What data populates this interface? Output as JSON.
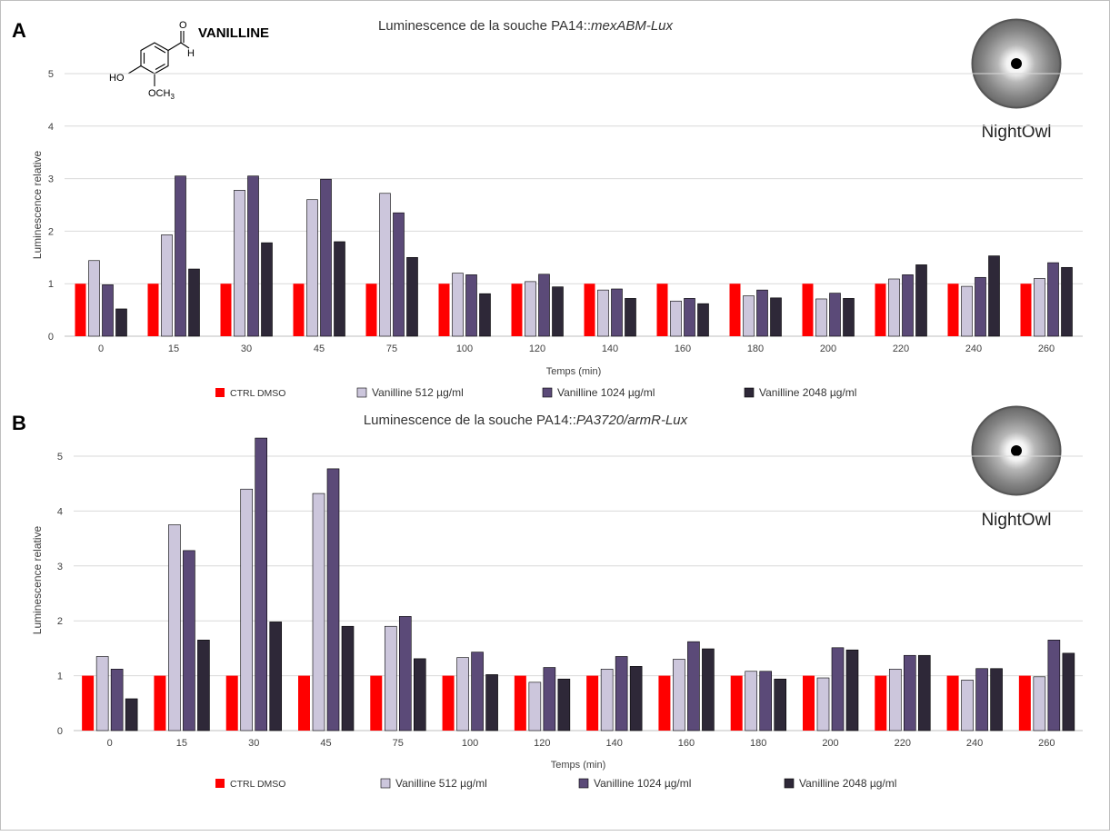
{
  "panel_letters": [
    "A",
    "B"
  ],
  "molecule": {
    "name": "VANILLINE",
    "atom_O": "O",
    "atom_H": "H",
    "atom_HO": "HO",
    "atom_OCH": "OCH",
    "atom_sub3": "3"
  },
  "imaging_label": "NightOwl",
  "colors": {
    "ctrl": "#ff0000",
    "v512": "#ccc6dc",
    "v1024": "#5b4a78",
    "v2048": "#2e2838",
    "grid": "#d9d9d9",
    "axis": "#bfbfbf",
    "text": "#404040"
  },
  "chart_data": [
    {
      "type": "bar",
      "panel": "A",
      "title_prefix": "Luminescence de la souche PA14::",
      "title_italic": "mexABM-Lux",
      "xlabel": "Temps (min)",
      "ylabel": "Luminescence relative",
      "ylim": [
        0,
        5
      ],
      "yticks": [
        "0",
        "1",
        "2",
        "3",
        "4",
        "5"
      ],
      "grid": true,
      "legend_position": "bottom",
      "categories": [
        "0",
        "15",
        "30",
        "45",
        "75",
        "100",
        "120",
        "140",
        "160",
        "180",
        "200",
        "220",
        "240",
        "260"
      ],
      "series": [
        {
          "name": "CTRL DMSO",
          "values": [
            1,
            1,
            1,
            1,
            1,
            1,
            1,
            1,
            1,
            1,
            1,
            1,
            1,
            1
          ]
        },
        {
          "name": "Vanilline 512 µg/ml",
          "values": [
            1.44,
            1.93,
            2.78,
            2.6,
            2.72,
            1.2,
            1.04,
            0.88,
            0.67,
            0.77,
            0.71,
            1.09,
            0.95,
            1.1
          ]
        },
        {
          "name": "Vanilline 1024 µg/ml",
          "values": [
            0.98,
            3.05,
            3.05,
            2.99,
            2.35,
            1.17,
            1.18,
            0.9,
            0.72,
            0.88,
            0.82,
            1.17,
            1.12,
            1.4
          ]
        },
        {
          "name": "Vanilline 2048 µg/ml",
          "values": [
            0.52,
            1.28,
            1.78,
            1.8,
            1.5,
            0.81,
            0.94,
            0.72,
            0.62,
            0.73,
            0.72,
            1.36,
            1.53,
            1.31
          ]
        }
      ]
    },
    {
      "type": "bar",
      "panel": "B",
      "title_prefix": "Luminescence de la souche PA14::",
      "title_italic": "PA3720/armR-Lux",
      "xlabel": "Temps (min)",
      "ylabel": "Luminescence relative",
      "ylim": [
        0,
        5
      ],
      "yticks": [
        "0",
        "1",
        "2",
        "3",
        "4",
        "5"
      ],
      "grid": true,
      "legend_position": "bottom",
      "categories": [
        "0",
        "15",
        "30",
        "45",
        "75",
        "100",
        "120",
        "140",
        "160",
        "180",
        "200",
        "220",
        "240",
        "260"
      ],
      "series": [
        {
          "name": "CTRL DMSO",
          "values": [
            1,
            1,
            1,
            1,
            1,
            1,
            1,
            1,
            1,
            1,
            1,
            1,
            1,
            1
          ]
        },
        {
          "name": "Vanilline 512 µg/ml",
          "values": [
            1.35,
            3.75,
            4.4,
            4.32,
            1.9,
            1.33,
            0.88,
            1.12,
            1.3,
            1.08,
            0.96,
            1.12,
            0.92,
            0.98
          ]
        },
        {
          "name": "Vanilline 1024 µg/ml",
          "values": [
            1.12,
            3.28,
            5.33,
            4.77,
            2.08,
            1.43,
            1.15,
            1.35,
            1.62,
            1.08,
            1.51,
            1.37,
            1.13,
            1.65
          ]
        },
        {
          "name": "Vanilline 2048 µg/ml",
          "values": [
            0.58,
            1.65,
            1.98,
            1.9,
            1.31,
            1.02,
            0.94,
            1.17,
            1.49,
            0.94,
            1.47,
            1.37,
            1.13,
            1.41
          ]
        }
      ]
    }
  ]
}
